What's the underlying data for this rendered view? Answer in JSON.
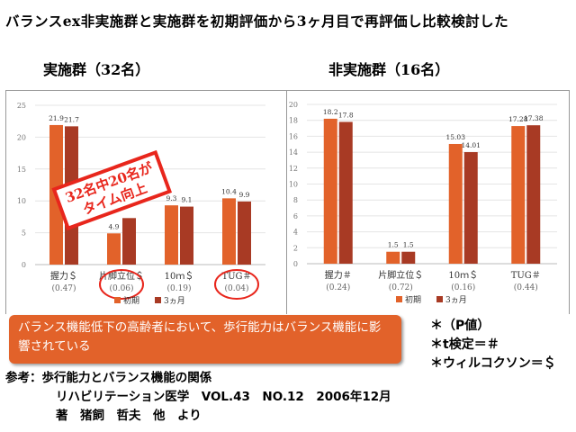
{
  "title": "バランスex非実施群と実施群を初期評価から3ヶ月目で再評価し比較検討した",
  "chart_data": [
    {
      "type": "bar",
      "title": "実施群（32名）",
      "categories": [
        "握力＄",
        "片脚立位＄",
        "10ｍ＄",
        "TUG＃"
      ],
      "p_values": [
        "(0.47)",
        "(0.06)",
        "(0.19)",
        "(0.04)"
      ],
      "series": [
        {
          "name": "初期",
          "values": [
            21.9,
            4.9,
            9.3,
            10.4
          ],
          "labels": [
            "21.9",
            "4.9",
            "9.3",
            "10.4"
          ]
        },
        {
          "name": "3ヵ月",
          "values": [
            21.7,
            7.3,
            9.1,
            9.9
          ],
          "labels": [
            "21.7",
            "",
            "9.1",
            "9.9"
          ]
        }
      ],
      "ylim": [
        0,
        25
      ],
      "yticks": [
        "0",
        "5",
        "10",
        "15",
        "20",
        "25"
      ],
      "legend": "bottom",
      "grid": true,
      "annotation": [
        "32名中20名が",
        "タイム向上"
      ],
      "highlighted_categories": [
        1,
        3
      ]
    },
    {
      "type": "bar",
      "title": "非実施群（16名）",
      "categories": [
        "握力＃",
        "片脚立位＄",
        "10ｍ＄",
        "TUG＃"
      ],
      "p_values": [
        "(0.24)",
        "(0.72)",
        "(0.16)",
        "(0.44)"
      ],
      "series": [
        {
          "name": "初期",
          "values": [
            18.2,
            1.5,
            15.03,
            17.28
          ],
          "labels": [
            "18.2",
            "1.5",
            "15.03",
            "17.28"
          ]
        },
        {
          "name": "3ヵ月",
          "values": [
            17.8,
            1.5,
            14.01,
            17.38
          ],
          "labels": [
            "17.8",
            "1.5",
            "14.01",
            "17.38"
          ]
        }
      ],
      "ylim": [
        0,
        20
      ],
      "yticks": [
        "0",
        "2",
        "4",
        "6",
        "8",
        "10",
        "12",
        "14",
        "16",
        "18",
        "20"
      ],
      "legend": "bottom",
      "grid": true
    }
  ],
  "colors": {
    "initial": "#e2622a",
    "three_month": "#a83a24",
    "highlight": "#e8261c"
  },
  "note": "バランス機能低下の高齢者において、歩行能力はバランス機能に影響されている",
  "pvalue_legend": [
    "＊（P値）",
    "＊t検定＝＃",
    "＊ウィルコクソン＝＄"
  ],
  "reference": [
    "参考：歩行能力とバランス機能の関係",
    "リハビリテーション医学　VOL.43　NO.12　2006年12月",
    "著　猪飼　哲夫　他　より"
  ]
}
